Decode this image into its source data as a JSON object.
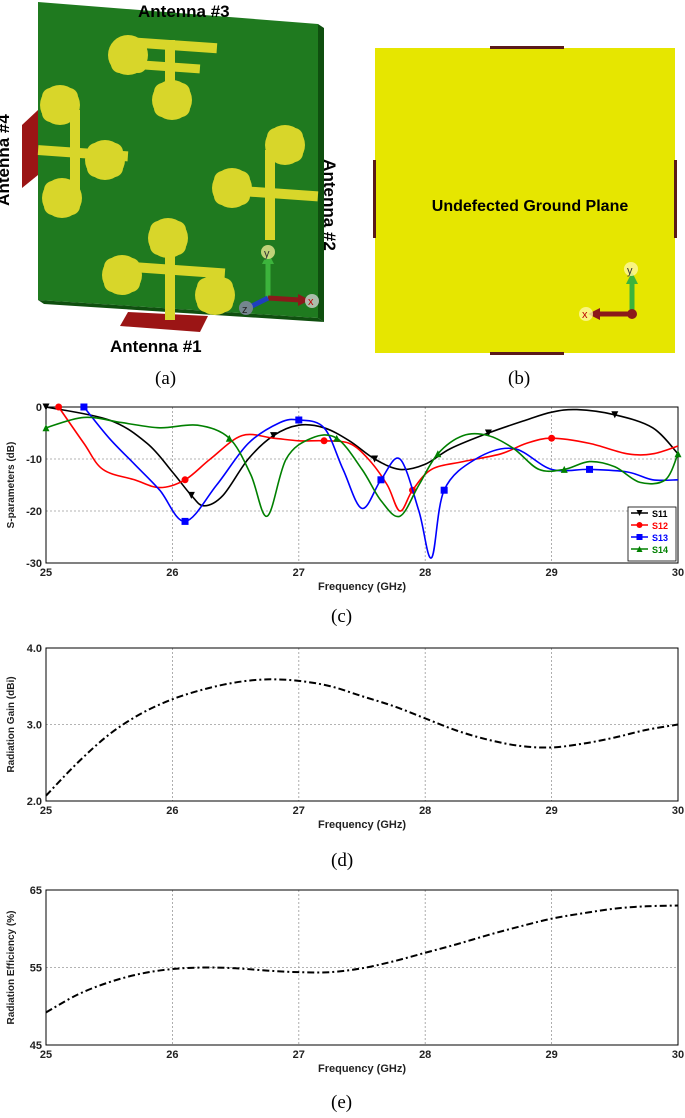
{
  "panels": {
    "a": {
      "label": "(a)",
      "antenna_labels": [
        "Antenna #3",
        "Antenna #4",
        "Antenna #2",
        "Antenna #1"
      ],
      "axes": [
        "y",
        "z",
        "x"
      ],
      "colors": {
        "substrate": "#1f7a1f",
        "patch": "#d8d62a",
        "port": "#9b1515"
      }
    },
    "b": {
      "label": "(b)",
      "caption": "Undefected Ground Plane",
      "axes": [
        "y",
        "x"
      ],
      "colors": {
        "ground": "#e6e600",
        "port": "#5a1a1a"
      }
    },
    "c": {
      "label": "(c)"
    },
    "d": {
      "label": "(d)"
    },
    "e": {
      "label": "(e)"
    }
  },
  "chart_data": [
    {
      "type": "line",
      "xlabel": "Frequency (GHz)",
      "ylabel": "S-parameters (dB)",
      "xlim": [
        25,
        30
      ],
      "ylim": [
        -30,
        0
      ],
      "xticks": [
        "25",
        "26",
        "27",
        "28",
        "29",
        "30"
      ],
      "yticks": [
        "0",
        "-10",
        "-20",
        "-30"
      ],
      "grid": true,
      "legend": "bottom-right",
      "series": [
        {
          "name": "S11",
          "color": "#000000",
          "marker": "triangle-down",
          "x": [
            25,
            25.5,
            25.8,
            26.0,
            26.15,
            26.25,
            26.4,
            26.6,
            26.8,
            27.0,
            27.2,
            27.4,
            27.6,
            27.8,
            28.0,
            28.2,
            28.5,
            28.8,
            29.0,
            29.2,
            29.5,
            29.8,
            30
          ],
          "y": [
            0,
            -2.5,
            -7,
            -12.5,
            -17,
            -19,
            -17,
            -10,
            -5.5,
            -3.5,
            -4,
            -6.5,
            -10,
            -12,
            -11,
            -8,
            -5,
            -2.5,
            -1,
            -0.5,
            -1.5,
            -4,
            -9
          ]
        },
        {
          "name": "S12",
          "color": "#ff0000",
          "marker": "circle",
          "x": [
            25.1,
            25.3,
            25.45,
            25.7,
            25.9,
            26.1,
            26.3,
            26.55,
            26.8,
            27.0,
            27.2,
            27.4,
            27.55,
            27.7,
            27.8,
            27.9,
            28.05,
            28.3,
            28.6,
            28.8,
            29.0,
            29.3,
            29.6,
            29.8,
            30
          ],
          "y": [
            0,
            -7,
            -12,
            -14,
            -15.5,
            -14,
            -10,
            -5.5,
            -6,
            -6.5,
            -6.5,
            -7,
            -10,
            -15,
            -20,
            -16,
            -12,
            -10.5,
            -9,
            -7,
            -6,
            -7,
            -9,
            -9,
            -7.5
          ]
        },
        {
          "name": "S13",
          "color": "#0000ff",
          "marker": "square",
          "x": [
            25.3,
            25.5,
            25.7,
            25.9,
            26.1,
            26.35,
            26.6,
            26.85,
            27.0,
            27.2,
            27.35,
            27.5,
            27.65,
            27.8,
            27.95,
            28.05,
            28.15,
            28.4,
            28.7,
            29.0,
            29.3,
            29.6,
            29.8,
            30
          ],
          "y": [
            0,
            -6,
            -11,
            -16,
            -22,
            -15,
            -7,
            -3,
            -2.5,
            -4,
            -12,
            -19.5,
            -14,
            -10,
            -20,
            -29,
            -16,
            -10,
            -8,
            -12,
            -12,
            -12.5,
            -14,
            -14
          ]
        },
        {
          "name": "S14",
          "color": "#008000",
          "marker": "triangle-up",
          "x": [
            25,
            25.3,
            25.6,
            25.9,
            26.2,
            26.45,
            26.62,
            26.75,
            26.9,
            27.1,
            27.3,
            27.5,
            27.65,
            27.8,
            27.95,
            28.1,
            28.3,
            28.5,
            28.7,
            28.9,
            29.1,
            29.3,
            29.5,
            29.7,
            29.9,
            30
          ],
          "y": [
            -4,
            -2,
            -3,
            -4,
            -3.5,
            -6,
            -13,
            -21,
            -10,
            -6,
            -6,
            -12,
            -18,
            -21,
            -15,
            -9,
            -5.5,
            -5.5,
            -8,
            -12,
            -12,
            -10.5,
            -11.5,
            -14.5,
            -14,
            -9
          ]
        }
      ]
    },
    {
      "type": "line",
      "xlabel": "Frequency (GHz)",
      "ylabel": "Radiation Gain (dBi)",
      "xlim": [
        25,
        30
      ],
      "ylim": [
        2.0,
        4.0
      ],
      "xticks": [
        "25",
        "26",
        "27",
        "28",
        "29",
        "30"
      ],
      "yticks": [
        "4.0",
        "3.0",
        "2.0"
      ],
      "grid": true,
      "series": [
        {
          "color": "#000000",
          "style": "dash-dot",
          "x": [
            25,
            25.25,
            25.5,
            25.75,
            26,
            26.25,
            26.5,
            26.75,
            27,
            27.25,
            27.5,
            27.75,
            28,
            28.25,
            28.5,
            28.75,
            29,
            29.25,
            29.5,
            29.75,
            30
          ],
          "y": [
            2.07,
            2.5,
            2.87,
            3.14,
            3.33,
            3.46,
            3.55,
            3.59,
            3.57,
            3.5,
            3.37,
            3.24,
            3.08,
            2.92,
            2.8,
            2.72,
            2.7,
            2.75,
            2.83,
            2.93,
            3.0
          ]
        }
      ]
    },
    {
      "type": "line",
      "xlabel": "Frequency (GHz)",
      "ylabel": "Radiation Efficiency (%)",
      "xlim": [
        25,
        30
      ],
      "ylim": [
        45,
        65
      ],
      "xticks": [
        "25",
        "26",
        "27",
        "28",
        "29",
        "30"
      ],
      "yticks": [
        "65",
        "55",
        "45"
      ],
      "grid": true,
      "series": [
        {
          "color": "#000000",
          "style": "dash-dot",
          "x": [
            25,
            25.25,
            25.5,
            25.75,
            26,
            26.25,
            26.5,
            26.75,
            27,
            27.25,
            27.5,
            27.75,
            28,
            28.25,
            28.5,
            28.75,
            29,
            29.25,
            29.5,
            29.75,
            30
          ],
          "y": [
            49.2,
            51.5,
            53.1,
            54.2,
            54.8,
            55.0,
            54.9,
            54.6,
            54.4,
            54.4,
            54.9,
            55.8,
            56.9,
            58.0,
            59.2,
            60.3,
            61.3,
            62.0,
            62.6,
            62.9,
            63.0
          ]
        }
      ]
    }
  ]
}
